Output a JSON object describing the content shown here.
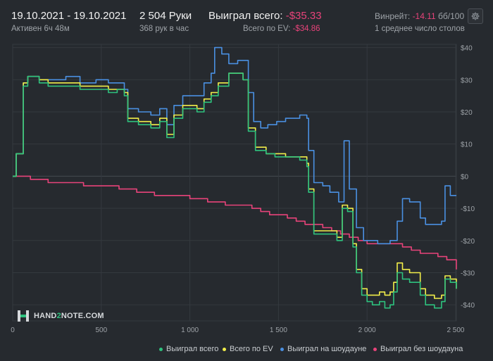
{
  "header": {
    "date_range": "19.10.2021 - 19.10.2021",
    "active": "Активен 6ч 48м",
    "hands": "2 504 Руки",
    "hands_per_hour": "368 рук в час",
    "won_label": "Выиграл всего:",
    "won_value": "-$35.33",
    "ev_label": "Всего по EV:",
    "ev_value": "-$34.86",
    "winrate_label": "Винрейт:",
    "winrate_value": "-14.11",
    "winrate_unit": "бб/100",
    "tables": "1 среднее число столов"
  },
  "logo": {
    "pre": "HAND",
    "mid": "2",
    "post": "NOTE.COM"
  },
  "colors": {
    "background": "#262a2f",
    "grid": "#34393f",
    "green": "#2ec27e",
    "yellow": "#f2ee4a",
    "blue": "#4a90e2",
    "red": "#e8437a"
  },
  "chart_data": {
    "type": "line",
    "x_ticks": [
      "0",
      "500",
      "1 000",
      "1 500",
      "2 000",
      "2 500"
    ],
    "y_ticks": [
      "$40",
      "$30",
      "$20",
      "$10",
      "$0",
      "-$10",
      "-$20",
      "-$30",
      "-$40"
    ],
    "xlim": [
      0,
      2504
    ],
    "ylim": [
      -45,
      41
    ],
    "grid": true,
    "legend_position": "bottom-right",
    "series": [
      {
        "name": "Выиграл всего",
        "color": "#2ec27e",
        "values": [
          [
            0,
            0
          ],
          [
            20,
            7
          ],
          [
            60,
            28
          ],
          [
            85,
            31
          ],
          [
            150,
            29
          ],
          [
            200,
            28
          ],
          [
            300,
            28
          ],
          [
            380,
            27
          ],
          [
            470,
            27
          ],
          [
            540,
            26
          ],
          [
            590,
            27
          ],
          [
            630,
            25
          ],
          [
            650,
            17
          ],
          [
            710,
            16
          ],
          [
            780,
            15
          ],
          [
            830,
            17
          ],
          [
            870,
            12
          ],
          [
            910,
            18
          ],
          [
            960,
            21
          ],
          [
            1000,
            21
          ],
          [
            1040,
            20
          ],
          [
            1080,
            23
          ],
          [
            1120,
            25
          ],
          [
            1160,
            28
          ],
          [
            1220,
            32
          ],
          [
            1270,
            32
          ],
          [
            1300,
            30
          ],
          [
            1330,
            14
          ],
          [
            1370,
            8
          ],
          [
            1430,
            7
          ],
          [
            1480,
            6
          ],
          [
            1540,
            6
          ],
          [
            1580,
            6
          ],
          [
            1620,
            5
          ],
          [
            1660,
            3
          ],
          [
            1670,
            -5
          ],
          [
            1700,
            -18
          ],
          [
            1750,
            -18
          ],
          [
            1800,
            -18
          ],
          [
            1830,
            -20
          ],
          [
            1860,
            -10
          ],
          [
            1890,
            -11
          ],
          [
            1920,
            -22
          ],
          [
            1940,
            -30
          ],
          [
            1970,
            -37
          ],
          [
            2000,
            -39
          ],
          [
            2030,
            -40
          ],
          [
            2070,
            -39
          ],
          [
            2100,
            -41
          ],
          [
            2130,
            -40
          ],
          [
            2150,
            -36
          ],
          [
            2170,
            -30
          ],
          [
            2200,
            -32
          ],
          [
            2240,
            -33
          ],
          [
            2300,
            -37
          ],
          [
            2330,
            -40
          ],
          [
            2380,
            -41
          ],
          [
            2420,
            -39
          ],
          [
            2440,
            -32
          ],
          [
            2470,
            -33
          ],
          [
            2504,
            -35
          ]
        ]
      },
      {
        "name": "Всего по EV",
        "color": "#f2ee4a",
        "values": [
          [
            0,
            0
          ],
          [
            20,
            7
          ],
          [
            60,
            29
          ],
          [
            85,
            31
          ],
          [
            150,
            30
          ],
          [
            200,
            29
          ],
          [
            300,
            29
          ],
          [
            380,
            28
          ],
          [
            470,
            28
          ],
          [
            540,
            27
          ],
          [
            590,
            27
          ],
          [
            630,
            26
          ],
          [
            650,
            18
          ],
          [
            710,
            17
          ],
          [
            780,
            16
          ],
          [
            830,
            18
          ],
          [
            870,
            13
          ],
          [
            910,
            19
          ],
          [
            960,
            22
          ],
          [
            1000,
            22
          ],
          [
            1040,
            21
          ],
          [
            1080,
            24
          ],
          [
            1120,
            26
          ],
          [
            1160,
            29
          ],
          [
            1220,
            32
          ],
          [
            1270,
            32
          ],
          [
            1300,
            30
          ],
          [
            1330,
            15
          ],
          [
            1370,
            9
          ],
          [
            1430,
            7
          ],
          [
            1480,
            7
          ],
          [
            1540,
            6
          ],
          [
            1580,
            6
          ],
          [
            1620,
            6
          ],
          [
            1660,
            4
          ],
          [
            1670,
            -4
          ],
          [
            1700,
            -17
          ],
          [
            1750,
            -17
          ],
          [
            1800,
            -17
          ],
          [
            1830,
            -19
          ],
          [
            1860,
            -9
          ],
          [
            1890,
            -10
          ],
          [
            1920,
            -21
          ],
          [
            1940,
            -29
          ],
          [
            1970,
            -35
          ],
          [
            2000,
            -37
          ],
          [
            2030,
            -37
          ],
          [
            2070,
            -36
          ],
          [
            2100,
            -37
          ],
          [
            2130,
            -36
          ],
          [
            2150,
            -33
          ],
          [
            2170,
            -27
          ],
          [
            2200,
            -29
          ],
          [
            2240,
            -30
          ],
          [
            2300,
            -35
          ],
          [
            2330,
            -37
          ],
          [
            2380,
            -38
          ],
          [
            2420,
            -37
          ],
          [
            2440,
            -31
          ],
          [
            2470,
            -32
          ],
          [
            2504,
            -35
          ]
        ]
      },
      {
        "name": "Выиграл на шоудауне",
        "color": "#4a90e2",
        "values": [
          [
            0,
            0
          ],
          [
            20,
            7
          ],
          [
            60,
            29
          ],
          [
            85,
            31
          ],
          [
            150,
            30
          ],
          [
            200,
            30
          ],
          [
            300,
            31
          ],
          [
            380,
            29
          ],
          [
            470,
            30
          ],
          [
            540,
            29
          ],
          [
            590,
            29
          ],
          [
            630,
            27
          ],
          [
            650,
            21
          ],
          [
            710,
            20
          ],
          [
            780,
            19
          ],
          [
            830,
            21
          ],
          [
            870,
            16
          ],
          [
            910,
            22
          ],
          [
            960,
            25
          ],
          [
            1000,
            25
          ],
          [
            1040,
            25
          ],
          [
            1080,
            29
          ],
          [
            1120,
            32
          ],
          [
            1140,
            40
          ],
          [
            1180,
            38
          ],
          [
            1220,
            35
          ],
          [
            1270,
            36
          ],
          [
            1300,
            36
          ],
          [
            1330,
            26
          ],
          [
            1360,
            17
          ],
          [
            1400,
            15
          ],
          [
            1440,
            16
          ],
          [
            1490,
            17
          ],
          [
            1540,
            18
          ],
          [
            1580,
            18
          ],
          [
            1620,
            19
          ],
          [
            1660,
            18
          ],
          [
            1670,
            8
          ],
          [
            1700,
            -2
          ],
          [
            1750,
            -3
          ],
          [
            1790,
            -5
          ],
          [
            1840,
            -8
          ],
          [
            1870,
            11
          ],
          [
            1900,
            -4
          ],
          [
            1940,
            -16
          ],
          [
            1980,
            -20
          ],
          [
            2020,
            -20
          ],
          [
            2060,
            -21
          ],
          [
            2100,
            -21
          ],
          [
            2130,
            -20
          ],
          [
            2170,
            -14
          ],
          [
            2200,
            -7
          ],
          [
            2240,
            -8
          ],
          [
            2300,
            -13
          ],
          [
            2330,
            -15
          ],
          [
            2380,
            -15
          ],
          [
            2420,
            -14
          ],
          [
            2440,
            -3
          ],
          [
            2470,
            -6
          ],
          [
            2504,
            -6
          ]
        ]
      },
      {
        "name": "Выиграл без шоудауна",
        "color": "#e8437a",
        "values": [
          [
            0,
            0
          ],
          [
            50,
            0
          ],
          [
            100,
            -1
          ],
          [
            150,
            -1
          ],
          [
            200,
            -2
          ],
          [
            250,
            -2
          ],
          [
            300,
            -2
          ],
          [
            350,
            -2
          ],
          [
            400,
            -3
          ],
          [
            450,
            -3
          ],
          [
            500,
            -3
          ],
          [
            550,
            -3
          ],
          [
            600,
            -4
          ],
          [
            650,
            -4
          ],
          [
            700,
            -5
          ],
          [
            750,
            -5
          ],
          [
            800,
            -6
          ],
          [
            850,
            -6
          ],
          [
            900,
            -6
          ],
          [
            950,
            -6
          ],
          [
            1000,
            -7
          ],
          [
            1050,
            -7
          ],
          [
            1100,
            -8
          ],
          [
            1150,
            -8
          ],
          [
            1200,
            -9
          ],
          [
            1250,
            -9
          ],
          [
            1300,
            -9
          ],
          [
            1350,
            -10
          ],
          [
            1400,
            -11
          ],
          [
            1450,
            -12
          ],
          [
            1500,
            -12
          ],
          [
            1550,
            -13
          ],
          [
            1600,
            -14
          ],
          [
            1650,
            -15
          ],
          [
            1700,
            -15
          ],
          [
            1750,
            -16
          ],
          [
            1800,
            -17
          ],
          [
            1850,
            -18
          ],
          [
            1900,
            -19
          ],
          [
            1950,
            -20
          ],
          [
            2000,
            -21
          ],
          [
            2050,
            -21
          ],
          [
            2100,
            -21
          ],
          [
            2150,
            -21
          ],
          [
            2200,
            -22
          ],
          [
            2250,
            -23
          ],
          [
            2300,
            -24
          ],
          [
            2350,
            -24
          ],
          [
            2400,
            -25
          ],
          [
            2450,
            -26
          ],
          [
            2504,
            -29
          ]
        ]
      }
    ]
  }
}
